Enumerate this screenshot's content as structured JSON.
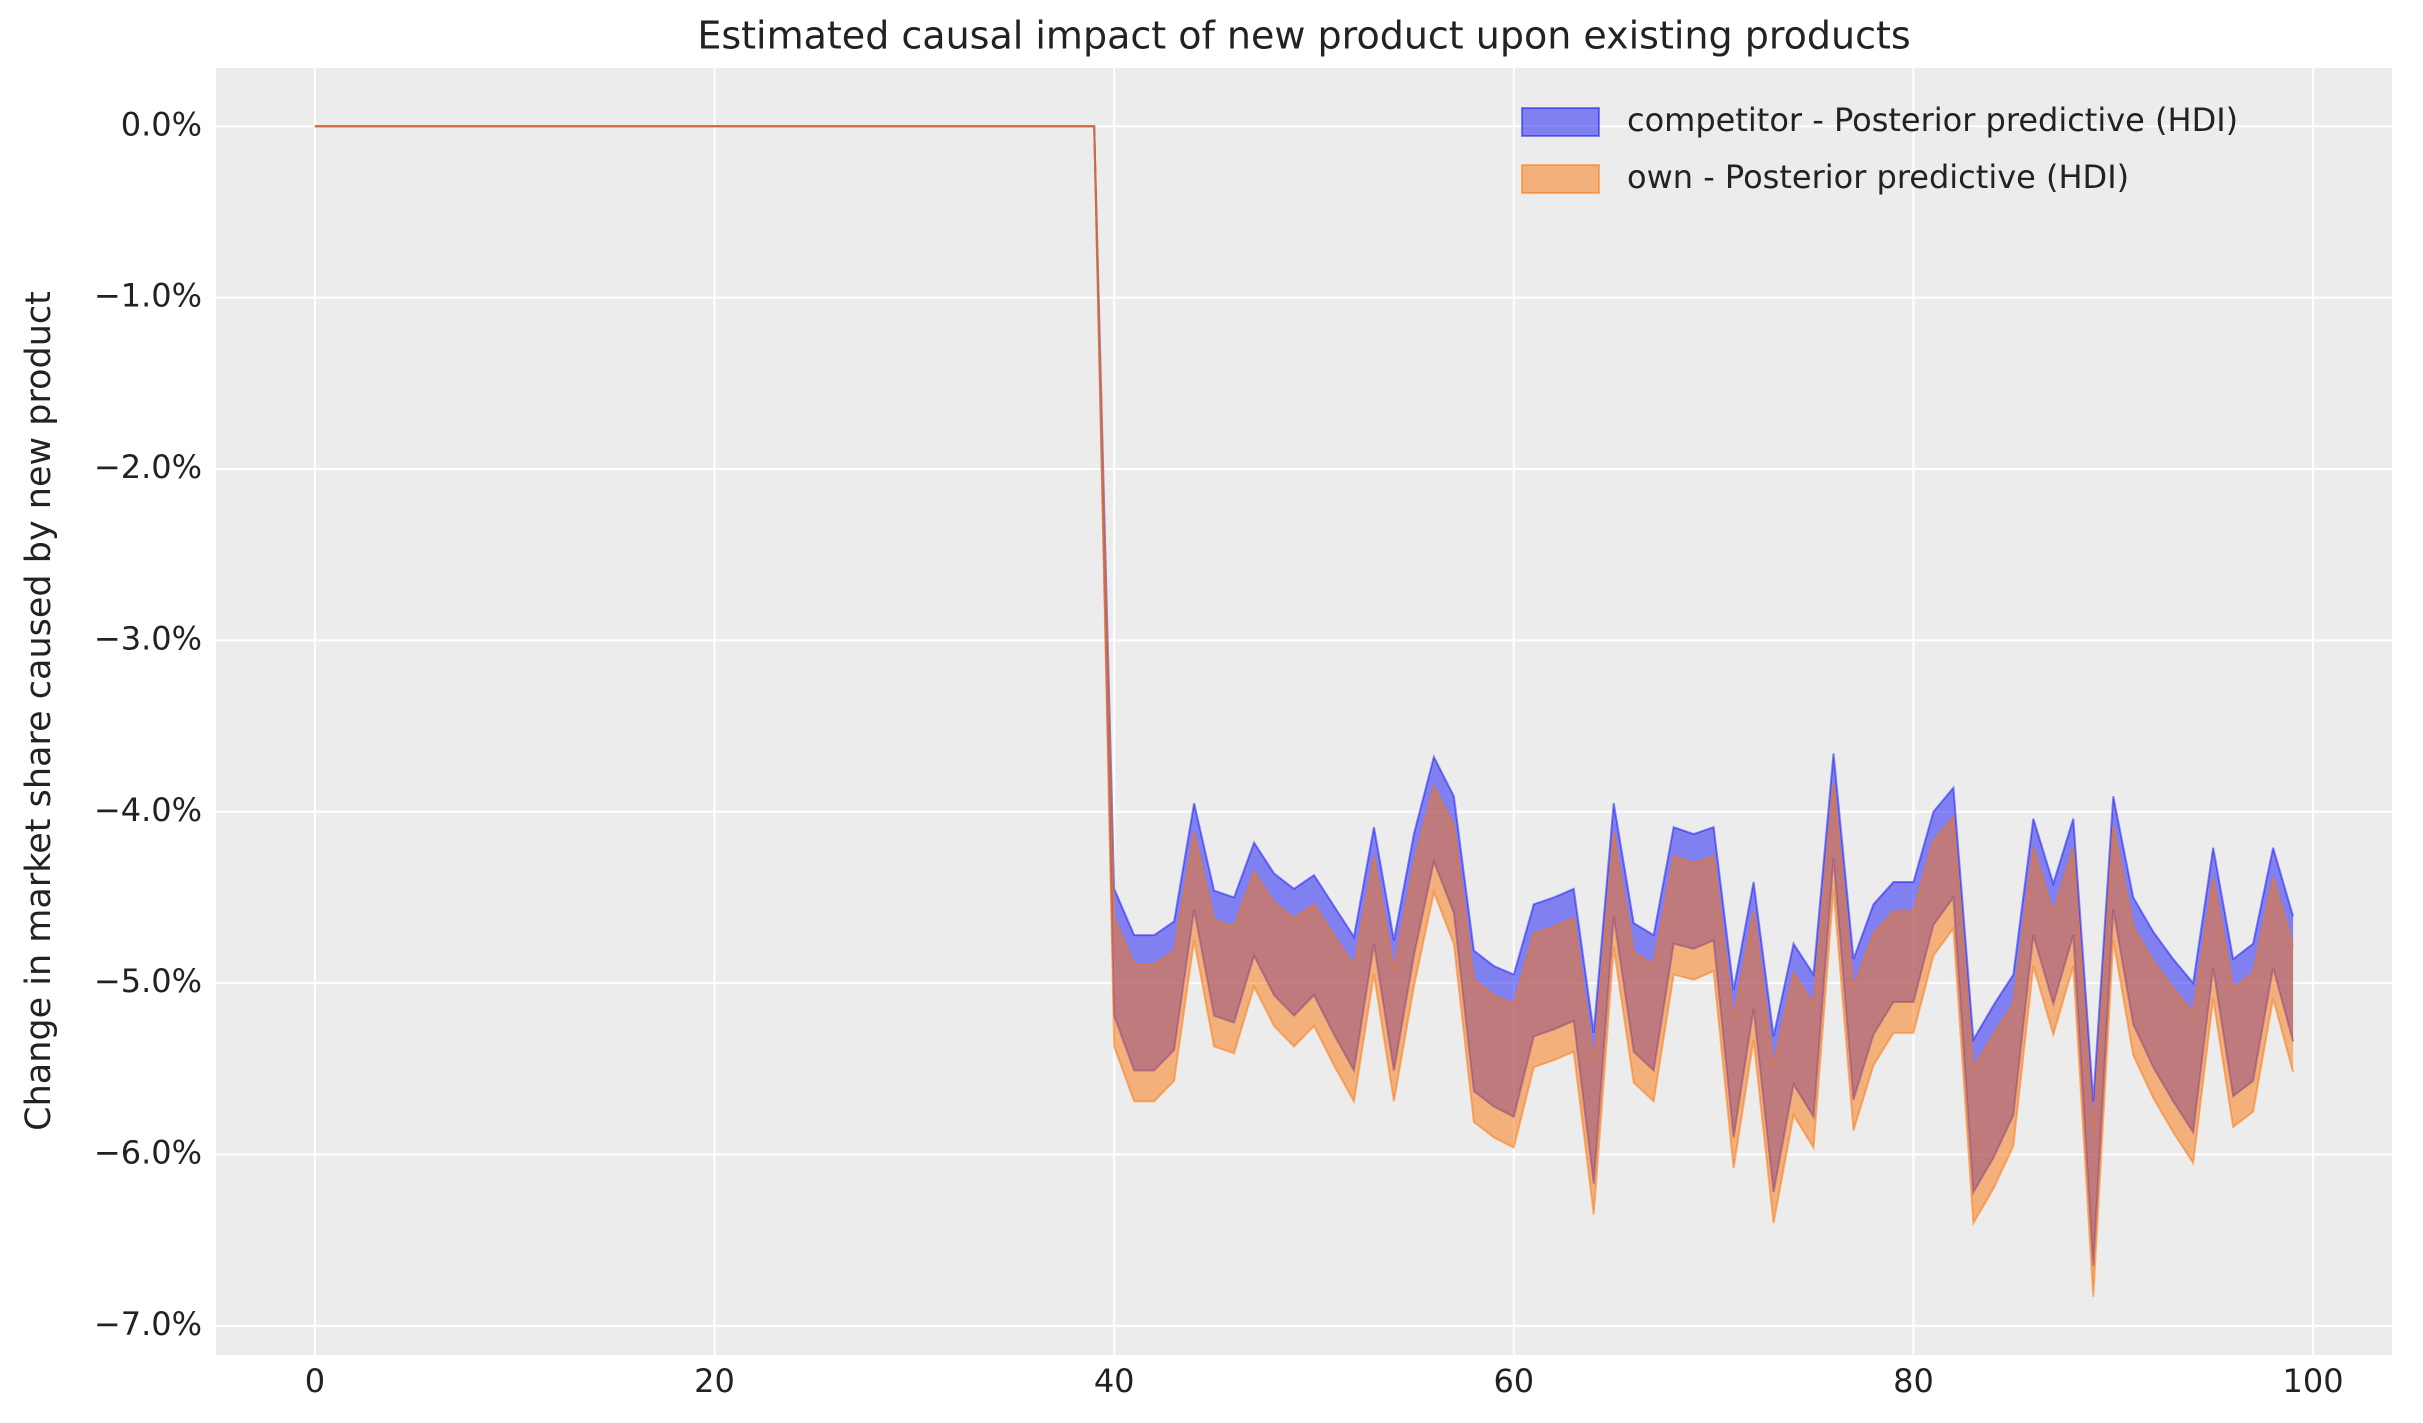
{
  "chart_data": {
    "type": "band",
    "title": "Estimated causal impact of new product upon existing products",
    "ylabel": "Change in market share caused by new product",
    "x": [
      0,
      1,
      2,
      3,
      4,
      5,
      6,
      7,
      8,
      9,
      10,
      11,
      12,
      13,
      14,
      15,
      16,
      17,
      18,
      19,
      20,
      21,
      22,
      23,
      24,
      25,
      26,
      27,
      28,
      29,
      30,
      31,
      32,
      33,
      34,
      35,
      36,
      37,
      38,
      39,
      40,
      41,
      42,
      43,
      44,
      45,
      46,
      47,
      48,
      49,
      50,
      51,
      52,
      53,
      54,
      55,
      56,
      57,
      58,
      59,
      60,
      61,
      62,
      63,
      64,
      65,
      66,
      67,
      68,
      69,
      70,
      71,
      72,
      73,
      74,
      75,
      76,
      77,
      78,
      79,
      80,
      81,
      82,
      83,
      84,
      85,
      86,
      87,
      88,
      89,
      90,
      91,
      92,
      93,
      94,
      95,
      96,
      97,
      98,
      99
    ],
    "series": [
      {
        "name": "competitor - Posterior predictive (HDI)",
        "color": "#1414f5",
        "upper": [
          0,
          0,
          0,
          0,
          0,
          0,
          0,
          0,
          0,
          0,
          0,
          0,
          0,
          0,
          0,
          0,
          0,
          0,
          0,
          0,
          0,
          0,
          0,
          0,
          0,
          0,
          0,
          0,
          0,
          0,
          0,
          0,
          0,
          0,
          0,
          0,
          0,
          0,
          0,
          0,
          -4.45,
          -4.72,
          -4.72,
          -4.64,
          -3.95,
          -4.46,
          -4.5,
          -4.18,
          -4.36,
          -4.45,
          -4.37,
          -4.55,
          -4.73,
          -4.09,
          -4.75,
          -4.13,
          -3.68,
          -3.91,
          -4.81,
          -4.9,
          -4.95,
          -4.54,
          -4.5,
          -4.45,
          -5.29,
          -3.95,
          -4.65,
          -4.72,
          -4.09,
          -4.13,
          -4.09,
          -5.04,
          -4.41,
          -5.31,
          -4.77,
          -4.95,
          -3.66,
          -4.86,
          -4.54,
          -4.41,
          -4.41,
          -4.0,
          -3.86,
          -5.33,
          -5.13,
          -4.95,
          -4.04,
          -4.42,
          -4.04,
          -5.69,
          -3.91,
          -4.5,
          -4.7,
          -4.86,
          -5.0,
          -4.21,
          -4.86,
          -4.77,
          -4.21,
          -4.61
        ],
        "lower": [
          0,
          0,
          0,
          0,
          0,
          0,
          0,
          0,
          0,
          0,
          0,
          0,
          0,
          0,
          0,
          0,
          0,
          0,
          0,
          0,
          0,
          0,
          0,
          0,
          0,
          0,
          0,
          0,
          0,
          0,
          0,
          0,
          0,
          0,
          0,
          0,
          0,
          0,
          0,
          0,
          -5.19,
          -5.51,
          -5.51,
          -5.39,
          -4.57,
          -5.19,
          -5.23,
          -4.84,
          -5.07,
          -5.19,
          -5.07,
          -5.3,
          -5.51,
          -4.77,
          -5.51,
          -4.84,
          -4.29,
          -4.59,
          -5.63,
          -5.72,
          -5.78,
          -5.31,
          -5.27,
          -5.22,
          -6.17,
          -4.61,
          -5.4,
          -5.51,
          -4.77,
          -4.8,
          -4.75,
          -5.9,
          -5.15,
          -6.22,
          -5.59,
          -5.78,
          -4.27,
          -5.68,
          -5.3,
          -5.11,
          -5.11,
          -4.66,
          -4.5,
          -6.22,
          -6.02,
          -5.77,
          -4.72,
          -5.12,
          -4.72,
          -6.65,
          -4.57,
          -5.24,
          -5.49,
          -5.69,
          -5.87,
          -4.91,
          -5.66,
          -5.57,
          -4.91,
          -5.34
        ]
      },
      {
        "name": "own - Posterior predictive (HDI)",
        "color": "#fc7408",
        "upper": [
          0,
          0,
          0,
          0,
          0,
          0,
          0,
          0,
          0,
          0,
          0,
          0,
          0,
          0,
          0,
          0,
          0,
          0,
          0,
          0,
          0,
          0,
          0,
          0,
          0,
          0,
          0,
          0,
          0,
          0,
          0,
          0,
          0,
          0,
          0,
          0,
          0,
          0,
          0,
          0,
          -4.62,
          -4.89,
          -4.89,
          -4.81,
          -4.12,
          -4.63,
          -4.67,
          -4.35,
          -4.53,
          -4.62,
          -4.54,
          -4.72,
          -4.9,
          -4.26,
          -4.92,
          -4.3,
          -3.85,
          -4.08,
          -4.98,
          -5.07,
          -5.12,
          -4.71,
          -4.67,
          -4.62,
          -5.46,
          -4.12,
          -4.82,
          -4.89,
          -4.26,
          -4.3,
          -4.26,
          -5.21,
          -4.58,
          -5.48,
          -4.94,
          -5.12,
          -3.83,
          -5.03,
          -4.71,
          -4.58,
          -4.58,
          -4.17,
          -4.03,
          -5.5,
          -5.3,
          -5.12,
          -4.21,
          -4.59,
          -4.21,
          -5.86,
          -4.08,
          -4.67,
          -4.87,
          -5.03,
          -5.17,
          -4.38,
          -5.03,
          -4.94,
          -4.38,
          -4.78
        ],
        "lower": [
          0,
          0,
          0,
          0,
          0,
          0,
          0,
          0,
          0,
          0,
          0,
          0,
          0,
          0,
          0,
          0,
          0,
          0,
          0,
          0,
          0,
          0,
          0,
          0,
          0,
          0,
          0,
          0,
          0,
          0,
          0,
          0,
          0,
          0,
          0,
          0,
          0,
          0,
          0,
          0,
          -5.37,
          -5.69,
          -5.69,
          -5.57,
          -4.75,
          -5.37,
          -5.41,
          -5.02,
          -5.25,
          -5.37,
          -5.25,
          -5.48,
          -5.69,
          -4.95,
          -5.69,
          -5.02,
          -4.47,
          -4.77,
          -5.81,
          -5.9,
          -5.96,
          -5.49,
          -5.45,
          -5.4,
          -6.35,
          -4.79,
          -5.58,
          -5.69,
          -4.95,
          -4.98,
          -4.93,
          -6.08,
          -5.33,
          -6.4,
          -5.77,
          -5.96,
          -4.45,
          -5.86,
          -5.48,
          -5.29,
          -5.29,
          -4.84,
          -4.68,
          -6.4,
          -6.2,
          -5.95,
          -4.9,
          -5.3,
          -4.9,
          -6.83,
          -4.75,
          -5.42,
          -5.67,
          -5.87,
          -6.05,
          -5.09,
          -5.84,
          -5.75,
          -5.09,
          -5.52
        ]
      }
    ],
    "alpha": 0.5,
    "xlim": [
      -4.95,
      103.95
    ],
    "ylim": [
      -7.17,
      0.34
    ],
    "xticks": [
      0,
      20,
      40,
      60,
      80,
      100
    ],
    "yticks": [
      {
        "value": 0,
        "label": "0.0%"
      },
      {
        "value": -1,
        "label": "−1.0%"
      },
      {
        "value": -2,
        "label": "−2.0%"
      },
      {
        "value": -3,
        "label": "−3.0%"
      },
      {
        "value": -4,
        "label": "−4.0%"
      },
      {
        "value": -5,
        "label": "−5.0%"
      },
      {
        "value": -6,
        "label": "−6.0%"
      },
      {
        "value": -7,
        "label": "−7.0%"
      }
    ],
    "grid": true,
    "legend": "upper right"
  }
}
